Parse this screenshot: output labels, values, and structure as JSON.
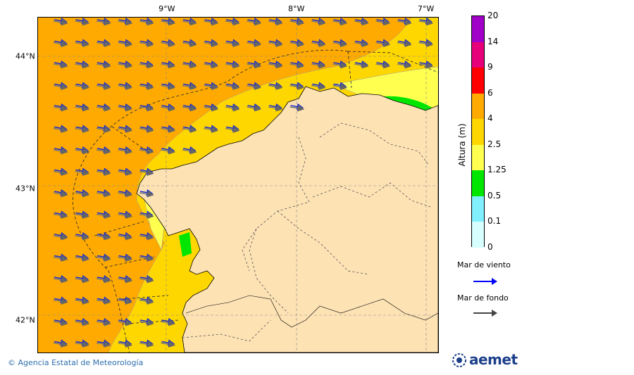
{
  "axes": {
    "lon_ticks": [
      {
        "label": "9°W",
        "lon": -9
      },
      {
        "label": "8°W",
        "lon": -8
      },
      {
        "label": "7°W",
        "lon": -7
      }
    ],
    "lat_ticks": [
      {
        "label": "44°N",
        "lat": 44
      },
      {
        "label": "43°N",
        "lat": 43
      },
      {
        "label": "42°N",
        "lat": 42
      }
    ],
    "lon_range": [
      -10.0,
      -6.9
    ],
    "lat_range": [
      41.75,
      44.3
    ]
  },
  "colorbar": {
    "title": "Altura (m)",
    "levels": [
      "20",
      "14",
      "9",
      "6",
      "4",
      "2.5",
      "1.25",
      "0.5",
      "0.1",
      "0"
    ],
    "colors": [
      "#a000c8",
      "#e6007a",
      "#ff0000",
      "#ffaa00",
      "#ffd700",
      "#ffff50",
      "#00e600",
      "#80f0ff",
      "#d7ffff"
    ]
  },
  "legend": {
    "wind_sea_label": "Mar de viento",
    "wind_sea_color": "#0000ff",
    "swell_label": "Mar de fondo",
    "swell_color": "#555555"
  },
  "colors": {
    "land": "#fde2b4",
    "sea_high": "#ffaa00",
    "sea_mid": "#ffd700",
    "sea_low": "#ffff50",
    "sea_green": "#00e600"
  },
  "footer": {
    "agency": "© Agencia Estatal de Meteorología",
    "logo": "aemet"
  }
}
